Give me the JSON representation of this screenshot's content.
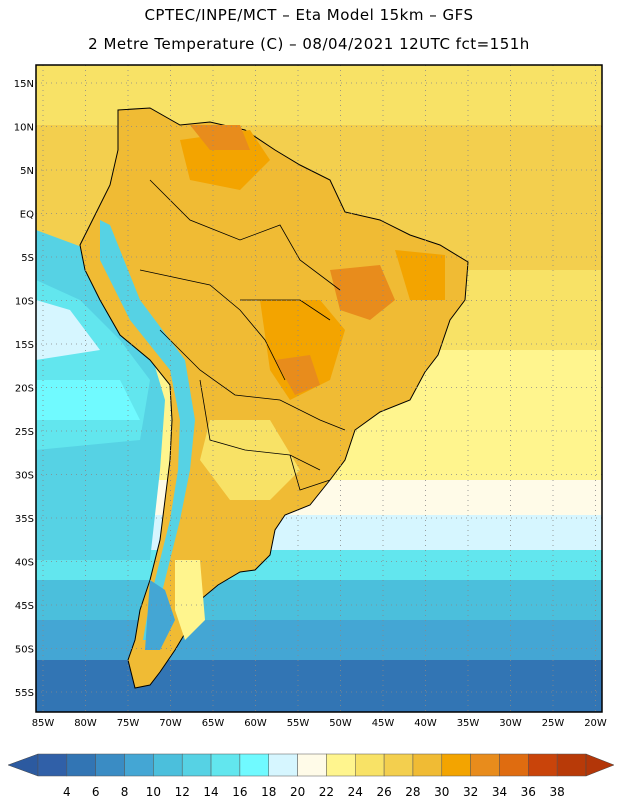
{
  "title": {
    "line1": "CPTEC/INPE/MCT  –   Eta Model 15km  –  GFS",
    "line2": "2 Metre Temperature (C) – 08/04/2021 12UTC fct=151h"
  },
  "map": {
    "region": "South America",
    "lon_labels": [
      "85W",
      "80W",
      "75W",
      "70W",
      "65W",
      "60W",
      "55W",
      "50W",
      "45W",
      "40W",
      "35W",
      "30W",
      "25W",
      "20W"
    ],
    "lat_labels": [
      "15N",
      "10N",
      "5N",
      "EQ",
      "5S",
      "10S",
      "15S",
      "20S",
      "25S",
      "30S",
      "35S",
      "40S",
      "45S",
      "50S",
      "55S"
    ]
  },
  "colorbar": {
    "values": [
      "4",
      "6",
      "8",
      "10",
      "12",
      "14",
      "16",
      "18",
      "20",
      "22",
      "24",
      "26",
      "28",
      "30",
      "32",
      "34",
      "36",
      "38"
    ],
    "colors": [
      "#3060a8",
      "#3275b4",
      "#3a8cc4",
      "#44a6d4",
      "#4bbfdc",
      "#56d2e4",
      "#62e6ee",
      "#70faff",
      "#d6f6ff",
      "#fffbe8",
      "#fff58e",
      "#f8e266",
      "#f3cf4e",
      "#f0bb34",
      "#f3a400",
      "#e88c1c",
      "#df6c10",
      "#c9440a",
      "#b83a08"
    ],
    "low_arrow_color": "#2c5aa0",
    "high_arrow_color": "#b33608"
  }
}
